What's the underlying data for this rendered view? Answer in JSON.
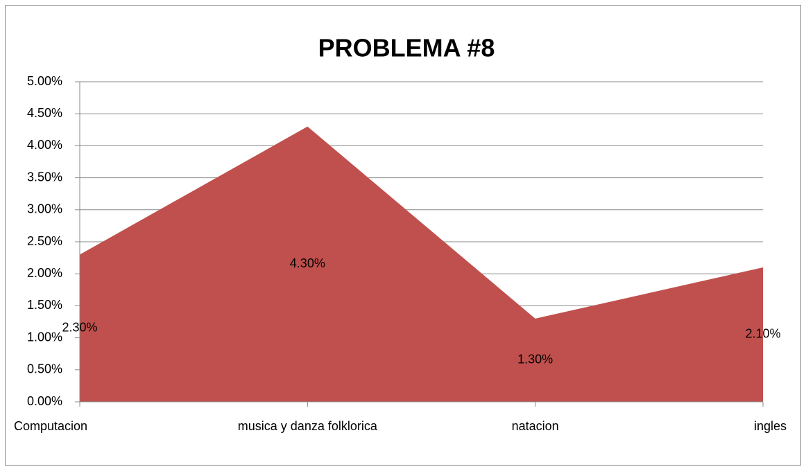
{
  "chart_data": {
    "type": "area",
    "title": "PROBLEMA #8",
    "categories": [
      "Computacion",
      "musica y danza folklorica",
      "natacion",
      "ingles"
    ],
    "values": [
      2.3,
      4.3,
      1.3,
      2.1
    ],
    "value_labels": [
      "2.30%",
      "4.30%",
      "1.30%",
      "2.10%"
    ],
    "color": "#c0504d",
    "ylim": [
      0,
      5
    ],
    "yticks": [
      {
        "value": 0,
        "label": "0.00%"
      },
      {
        "value": 0.5,
        "label": "0.50%"
      },
      {
        "value": 1,
        "label": "1.00%"
      },
      {
        "value": 1.5,
        "label": "1.50%"
      },
      {
        "value": 2,
        "label": "2.00%"
      },
      {
        "value": 2.5,
        "label": "2.50%"
      },
      {
        "value": 3,
        "label": "3.00%"
      },
      {
        "value": 3.5,
        "label": "3.50%"
      },
      {
        "value": 4,
        "label": "4.00%"
      },
      {
        "value": 4.5,
        "label": "4.50%"
      },
      {
        "value": 5,
        "label": "5.00%"
      }
    ],
    "grid": true
  }
}
